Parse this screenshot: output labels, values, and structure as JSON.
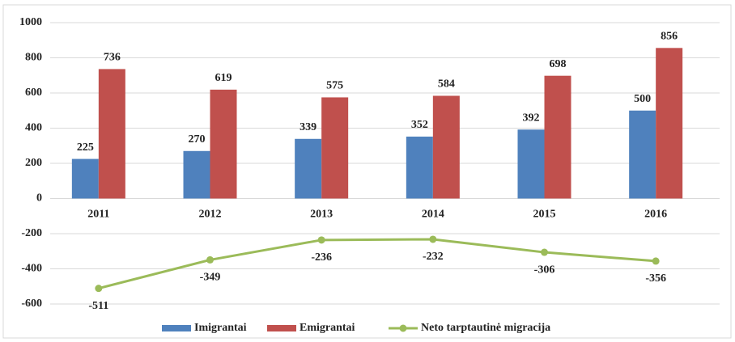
{
  "chart_data": {
    "type": "bar",
    "categories": [
      "2011",
      "2012",
      "2013",
      "2014",
      "2015",
      "2016"
    ],
    "series": [
      {
        "name": "Imigrantai",
        "color": "#4f81bd",
        "type": "bar",
        "values": [
          225,
          270,
          339,
          352,
          392,
          500
        ]
      },
      {
        "name": "Emigrantai",
        "color": "#c0504d",
        "type": "bar",
        "values": [
          736,
          619,
          575,
          584,
          698,
          856
        ]
      },
      {
        "name": "Neto tarptautinė migracija",
        "color": "#9bbb59",
        "type": "line",
        "values": [
          -511,
          -349,
          -236,
          -232,
          -306,
          -356
        ]
      }
    ],
    "ylim": [
      -600,
      1000
    ],
    "yticks": [
      -600,
      -400,
      -200,
      0,
      200,
      400,
      600,
      800,
      1000
    ],
    "grid": true,
    "legend": "bottom"
  }
}
